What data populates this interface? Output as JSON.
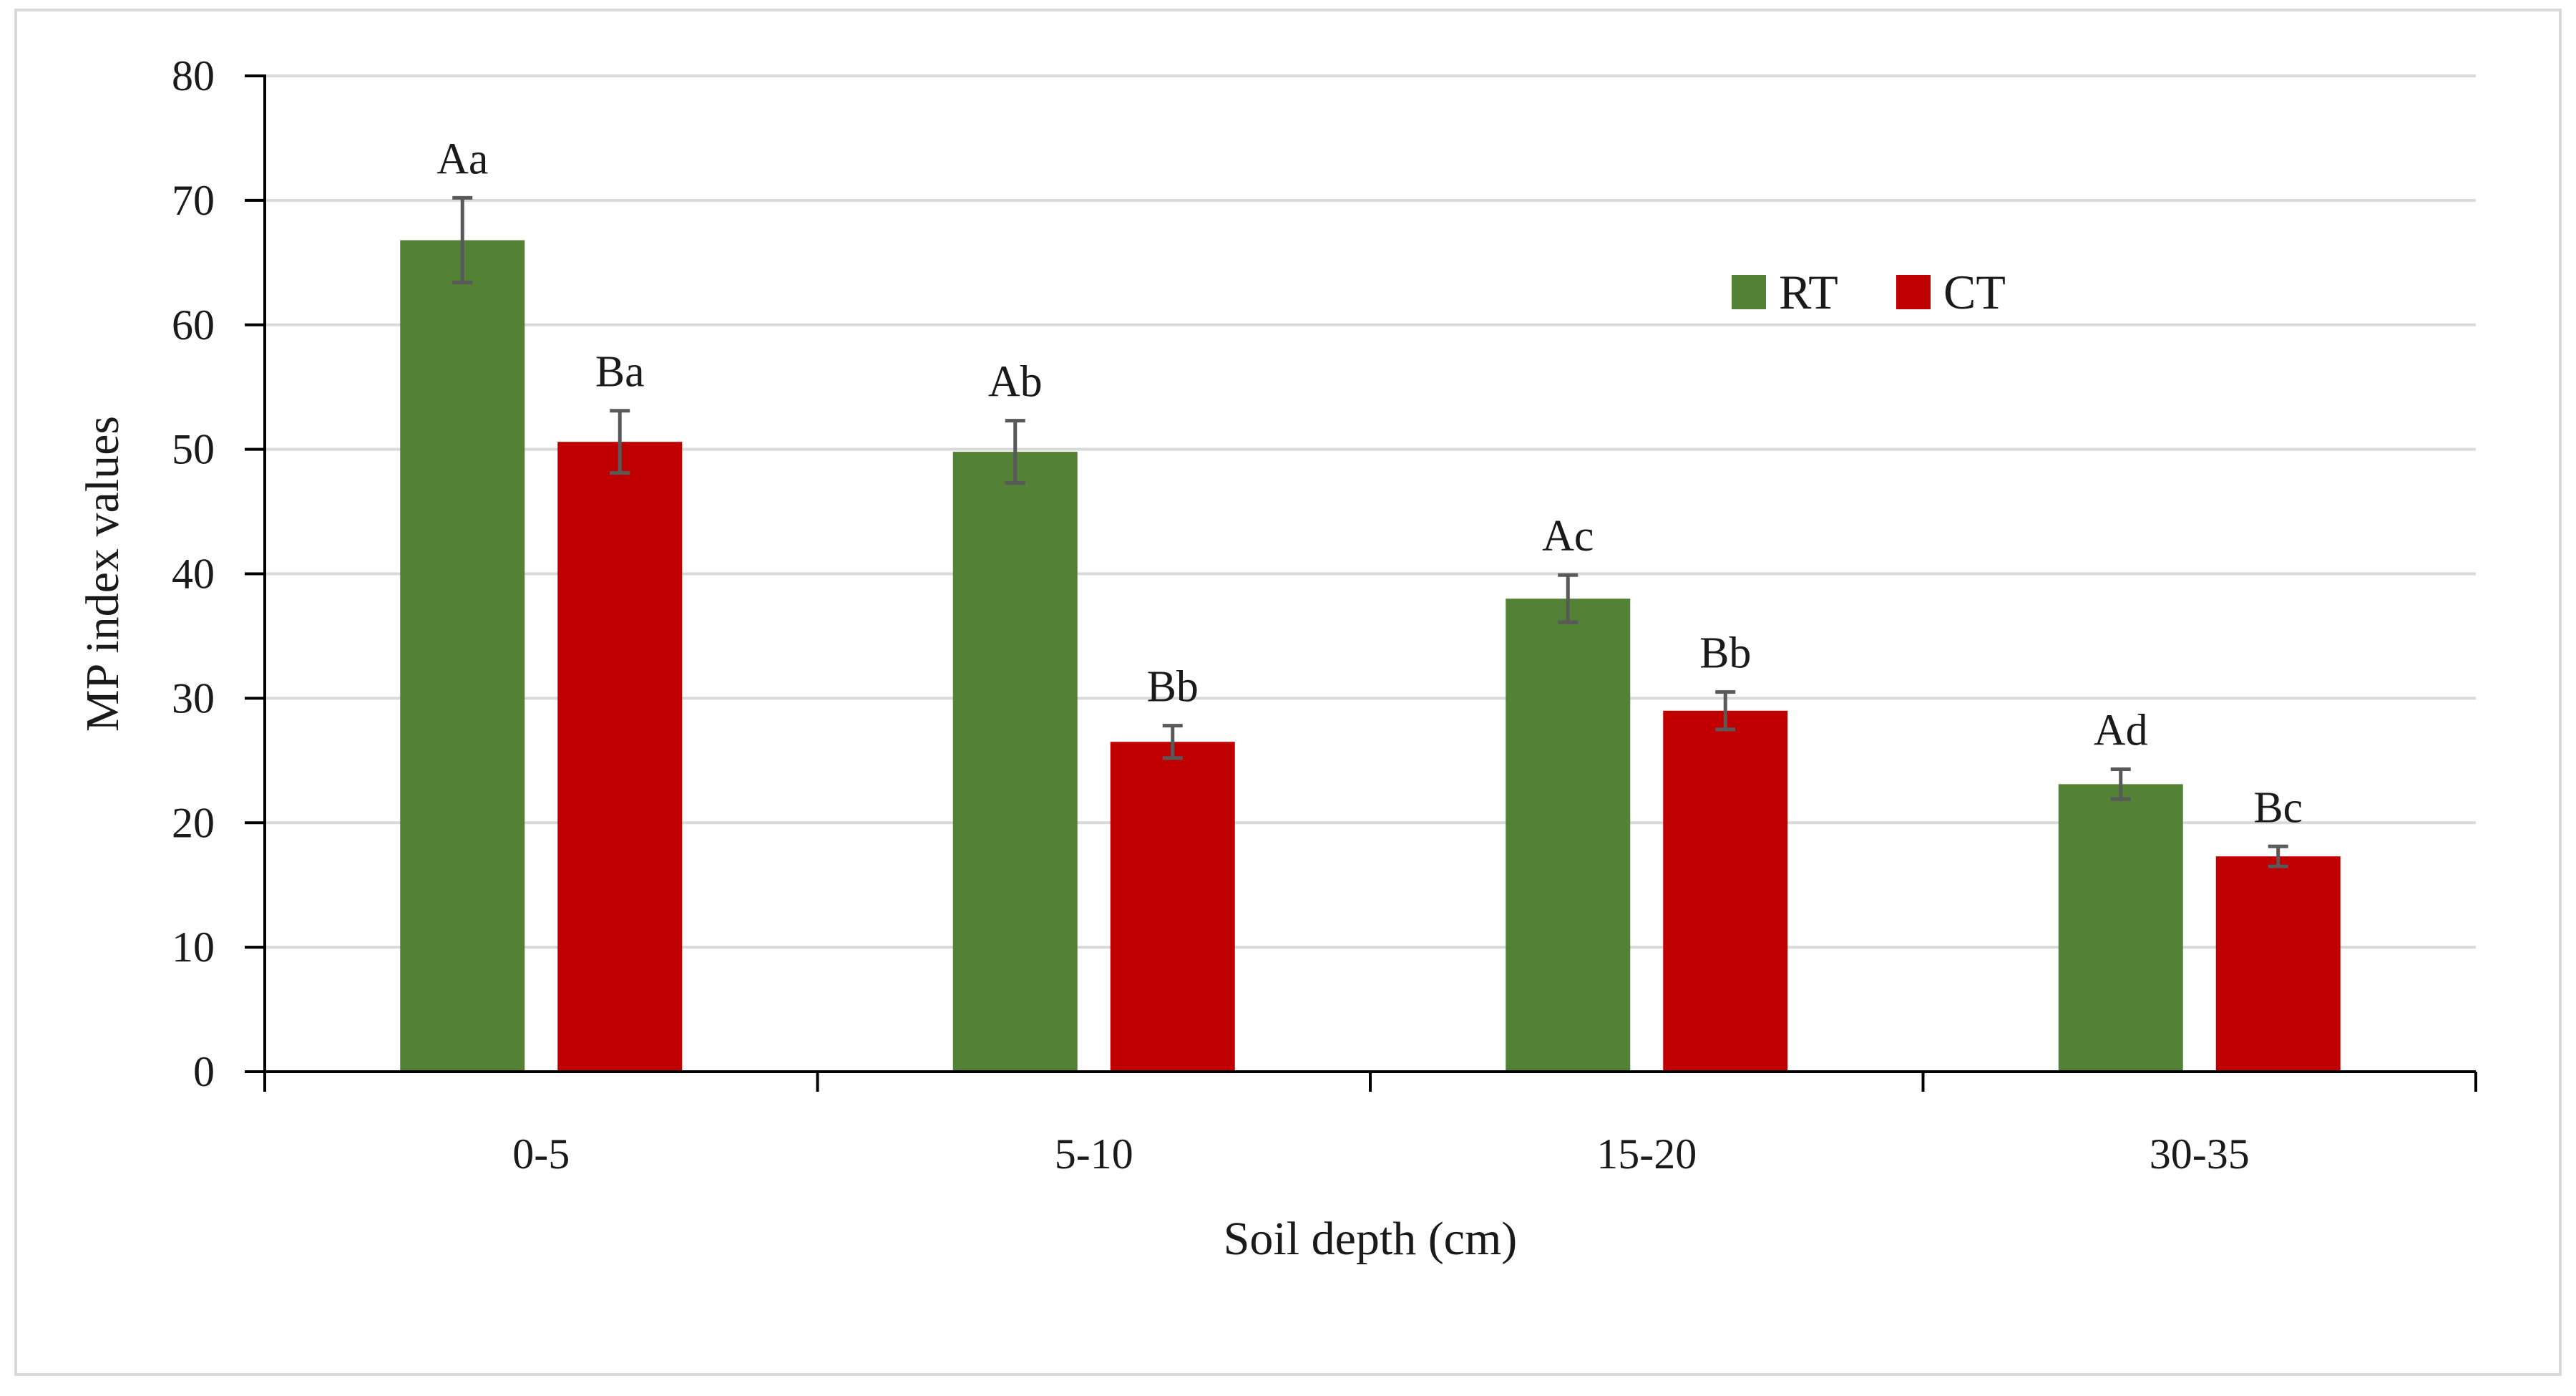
{
  "chart_data": {
    "type": "bar",
    "title": "",
    "xlabel": "Soil depth (cm)",
    "ylabel": "MP index values",
    "ylim": [
      0,
      80
    ],
    "yticks": [
      0,
      10,
      20,
      30,
      40,
      50,
      60,
      70,
      80
    ],
    "ytick_labels": [
      "0",
      "10",
      "20",
      "30",
      "40",
      "50",
      "60",
      "70",
      "80"
    ],
    "grid": true,
    "legend_position": "top-right",
    "categories": [
      "0-5",
      "5-10",
      "15-20",
      "30-35"
    ],
    "series": [
      {
        "name": "RT",
        "color": "#538135",
        "values": [
          66.8,
          49.8,
          38.0,
          23.1
        ],
        "errors": [
          3.4,
          2.5,
          1.9,
          1.2
        ],
        "labels": [
          "Aa",
          "Ab",
          "Ac",
          "Ad"
        ]
      },
      {
        "name": "CT",
        "color": "#c00000",
        "values": [
          50.6,
          26.5,
          29.0,
          17.3
        ],
        "errors": [
          2.5,
          1.3,
          1.5,
          0.8
        ],
        "labels": [
          "Ba",
          "Bb",
          "Bb",
          "Bc"
        ]
      }
    ]
  }
}
